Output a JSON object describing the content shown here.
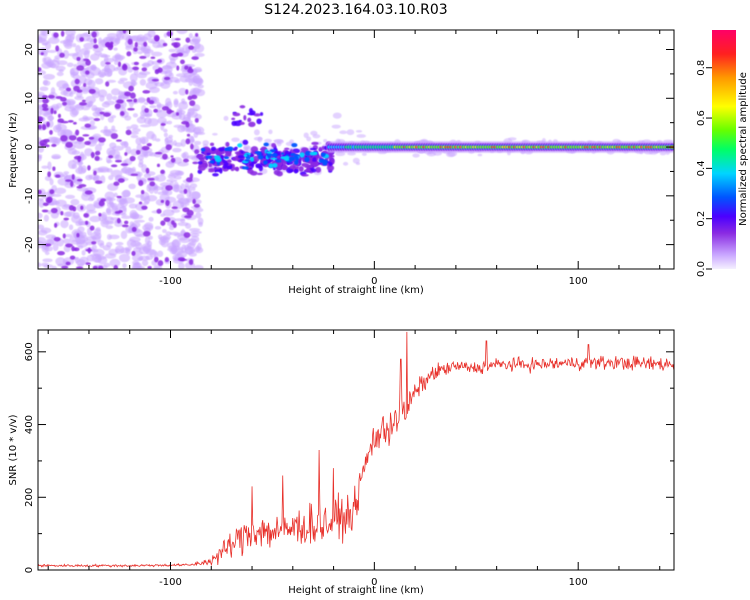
{
  "title": "S124.2023.164.03.10.R03",
  "chart_data": [
    {
      "type": "heatmap",
      "xlabel": "Height of straight line (km)",
      "ylabel": "Frequency (Hz)",
      "xlim": [
        -165,
        147
      ],
      "ylim": [
        -25,
        24
      ],
      "xticks": [
        -100,
        0,
        100
      ],
      "yticks": [
        -20,
        -10,
        0,
        10,
        20
      ],
      "description_regions": {
        "noise_scatter_x": [
          -165,
          -80
        ],
        "tone_x": [
          -20,
          147
        ],
        "tone_frequency_hz": 0
      },
      "colorbar": {
        "label": "Normalized spectral amplitude",
        "range": [
          0,
          0.95
        ],
        "ticks": [
          0.0,
          0.2,
          0.4,
          0.6,
          0.8
        ],
        "colors": [
          "#f5f0ff",
          "#c9a6ff",
          "#8a2be2",
          "#4b00ff",
          "#0055ff",
          "#00d5ff",
          "#00ff66",
          "#66ff00",
          "#ffff00",
          "#ff9900",
          "#ff2020",
          "#ff0066"
        ]
      }
    },
    {
      "type": "line",
      "xlabel": "Height of straight line (km)",
      "ylabel": "SNR (10 * v/v)",
      "xlim": [
        -165,
        147
      ],
      "ylim": [
        0,
        660
      ],
      "xticks": [
        -100,
        0,
        100
      ],
      "yticks": [
        0,
        200,
        400,
        600
      ],
      "color": "#e8302a",
      "profile": {
        "x": [
          -165,
          -120,
          -90,
          -80,
          -70,
          -60,
          -50,
          -40,
          -30,
          -20,
          -10,
          -5,
          0,
          5,
          10,
          15,
          20,
          25,
          30,
          40,
          50,
          60,
          80,
          100,
          120,
          147
        ],
        "y": [
          12,
          12,
          14,
          25,
          70,
          110,
          105,
          115,
          125,
          130,
          160,
          280,
          365,
          380,
          420,
          430,
          490,
          520,
          545,
          560,
          555,
          565,
          565,
          570,
          570,
          565
        ]
      },
      "noise_amplitude": {
        "x": [
          -165,
          -90,
          -80,
          -70,
          -60,
          -40,
          -20,
          -5,
          10,
          20,
          40,
          147
        ],
        "y": [
          5,
          5,
          20,
          60,
          75,
          80,
          90,
          60,
          90,
          40,
          25,
          30
        ]
      },
      "peaks": [
        {
          "x": -60,
          "y": 230
        },
        {
          "x": -45,
          "y": 260
        },
        {
          "x": -27,
          "y": 330
        },
        {
          "x": -20,
          "y": 280
        },
        {
          "x": 13,
          "y": 580
        },
        {
          "x": 16,
          "y": 655
        },
        {
          "x": 55,
          "y": 630
        },
        {
          "x": 105,
          "y": 620
        }
      ]
    }
  ]
}
